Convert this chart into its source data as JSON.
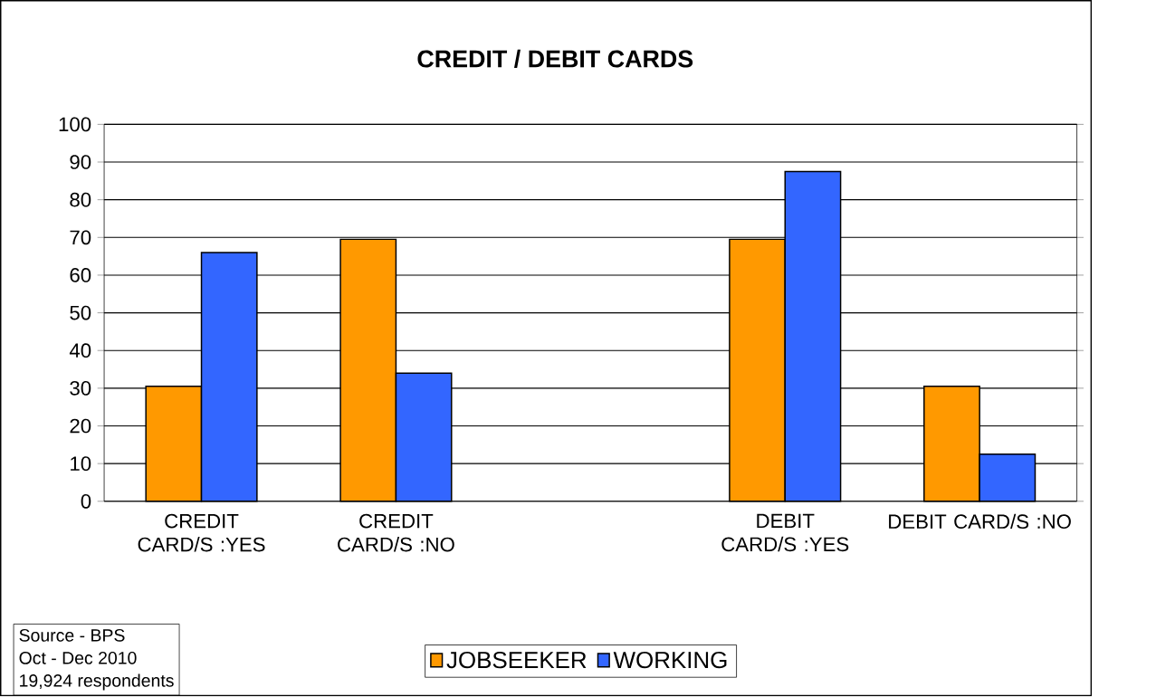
{
  "chart_data": {
    "type": "bar",
    "title": "CREDIT / DEBIT CARDS",
    "categories": [
      "CREDIT CARD/S :YES",
      "CREDIT CARD/S :NO",
      null,
      "DEBIT CARD/S :YES",
      "DEBIT CARD/S :NO"
    ],
    "series": [
      {
        "name": "JOBSEEKER",
        "color": "#ff9900",
        "values": [
          30.5,
          69.5,
          null,
          69.5,
          30.5
        ]
      },
      {
        "name": "WORKING",
        "color": "#3366ff",
        "values": [
          66,
          34,
          null,
          87.5,
          12.5
        ]
      }
    ],
    "ylim": [
      0,
      100
    ],
    "yticks": [
      0,
      10,
      20,
      30,
      40,
      50,
      60,
      70,
      80,
      90,
      100
    ],
    "grid": "y",
    "legend": "bottom",
    "annotations": [
      "Source - BPS",
      "Oct - Dec 2010",
      "19,924 respondents"
    ]
  }
}
